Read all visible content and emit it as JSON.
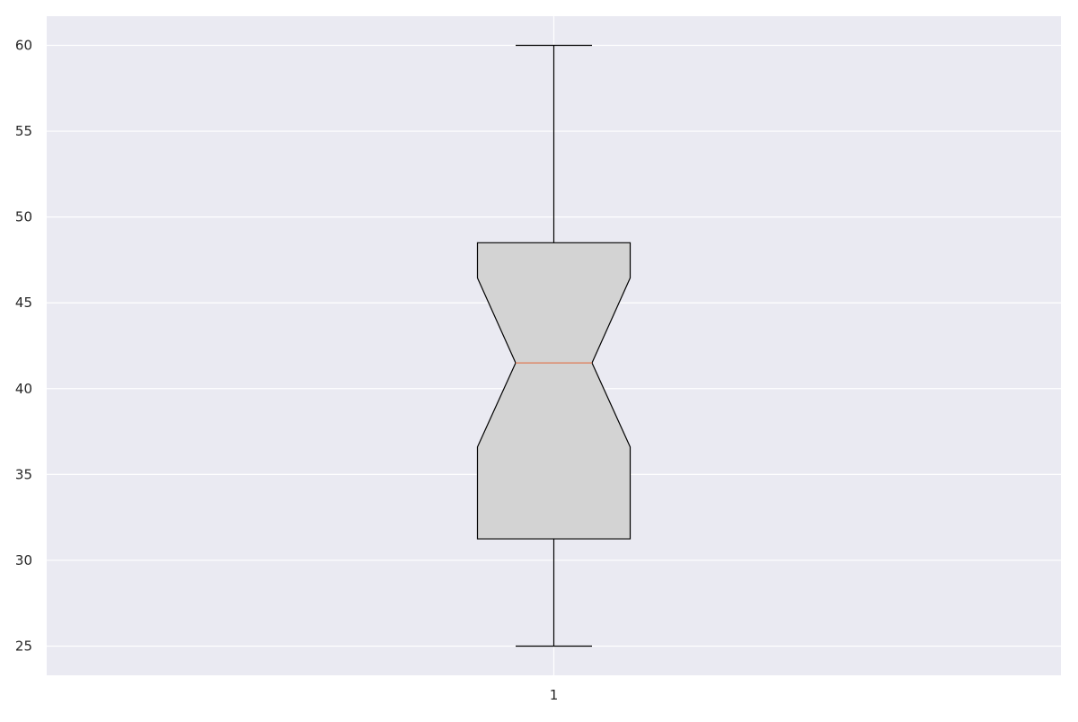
{
  "chart_data": {
    "type": "box",
    "title": "",
    "xlabel": "",
    "ylabel": "",
    "categories": [
      "1"
    ],
    "boxes": [
      {
        "label": "1",
        "whisker_low": 25.0,
        "q1": 31.25,
        "notch_low": 36.6,
        "median": 41.5,
        "notch_high": 46.45,
        "q3": 48.5,
        "whisker_high": 60.0
      }
    ],
    "ylim": [
      23.3,
      61.7
    ],
    "yticks": [
      25,
      30,
      35,
      40,
      45,
      50,
      55,
      60
    ],
    "ytick_labels": [
      "25",
      "30",
      "35",
      "40",
      "45",
      "50",
      "55",
      "60"
    ],
    "grid": true,
    "notched": true,
    "colors": {
      "background": "#eaeaf2",
      "grid": "#ffffff",
      "box_fill": "#d3d3d3",
      "box_edge": "#000000",
      "median": "#e07b54",
      "whisker": "#000000"
    }
  }
}
